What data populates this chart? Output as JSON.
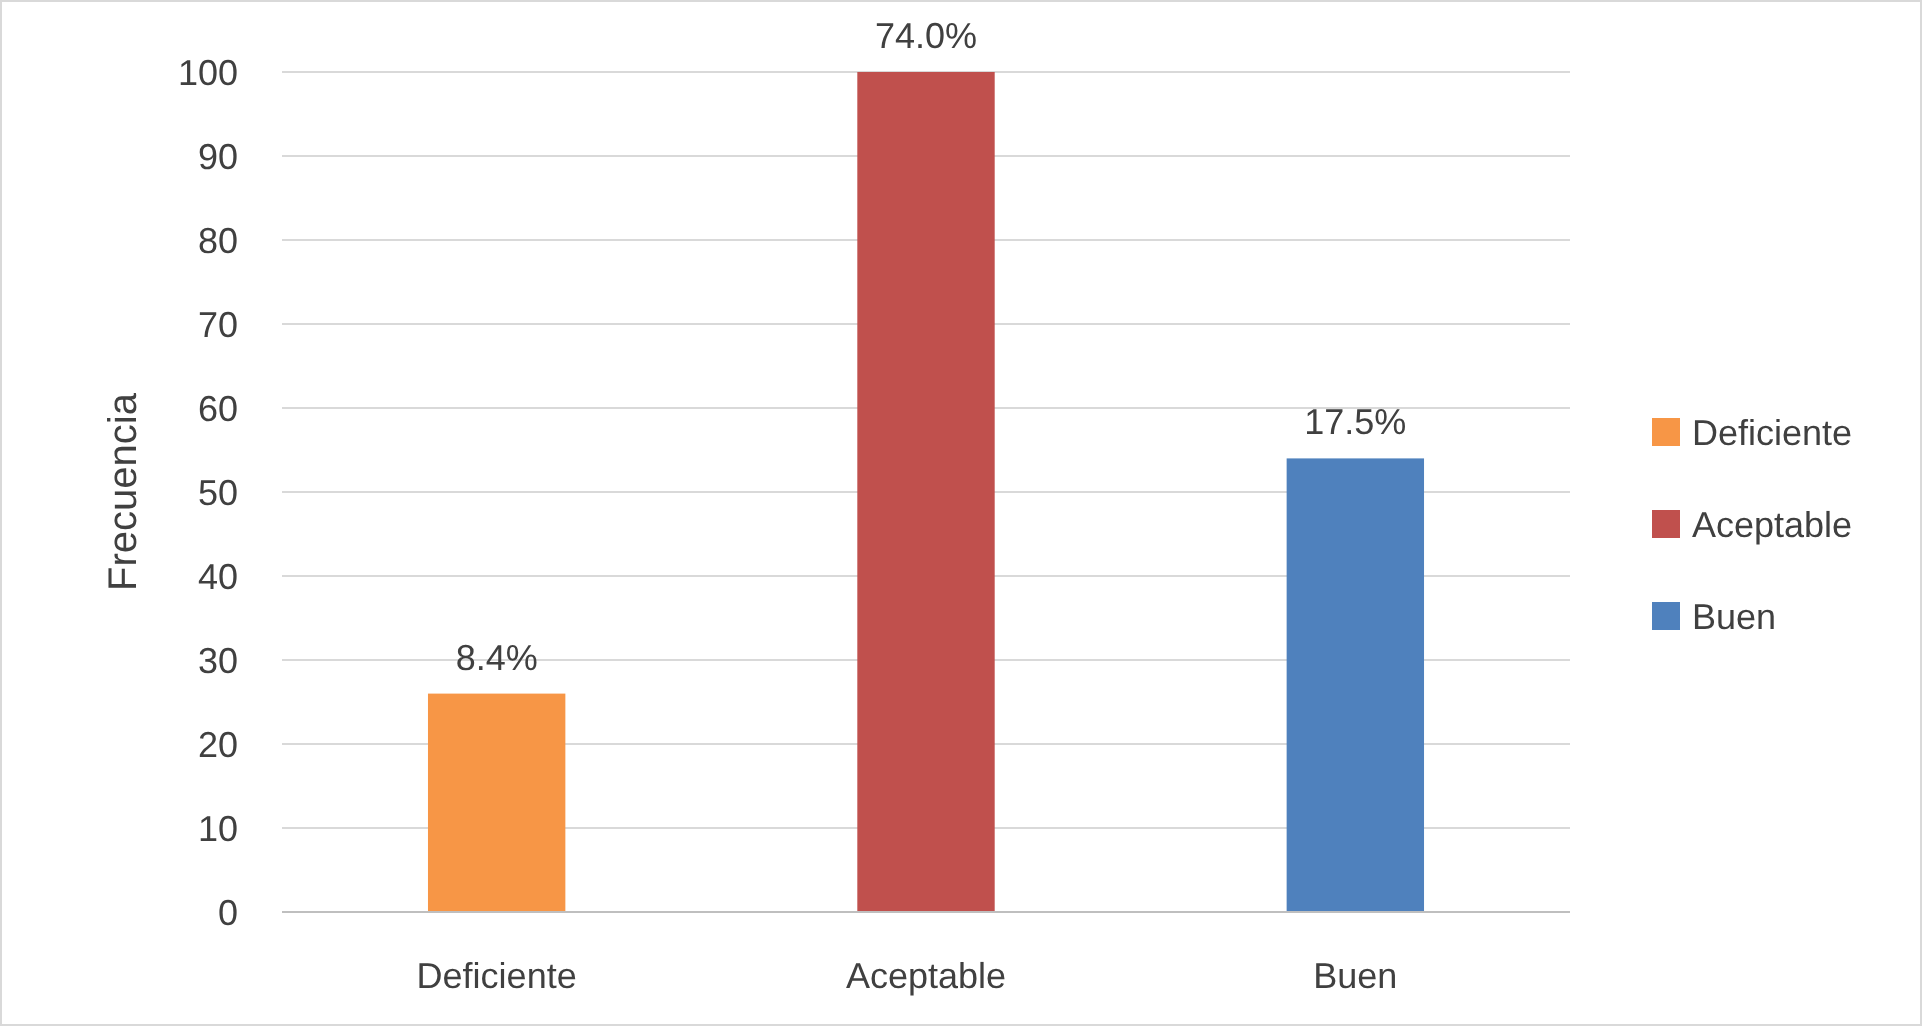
{
  "chart_data": {
    "type": "bar",
    "ylabel": "Frecuencia",
    "categories": [
      "Deficiente",
      "Aceptable",
      "Buen"
    ],
    "series": [
      {
        "name": "Deficiente",
        "color": "#f79646",
        "values": [
          26,
          null,
          null
        ]
      },
      {
        "name": "Aceptable",
        "color": "#c0504d",
        "values": [
          null,
          100,
          null
        ]
      },
      {
        "name": "Buen",
        "color": "#4f81bd",
        "values": [
          null,
          null,
          54
        ]
      }
    ],
    "annotations": [
      {
        "text": "8.4%",
        "x": "Deficiente",
        "y": 26
      },
      {
        "text": "74.0%",
        "x": "Aceptable",
        "y": 100
      },
      {
        "text": "17.5%",
        "x": "Buen",
        "y": 54
      }
    ],
    "ylim": [
      0,
      100
    ],
    "yticks": [
      0,
      10,
      20,
      30,
      40,
      50,
      60,
      70,
      80,
      90,
      100
    ],
    "grid": "y",
    "legend": "right"
  }
}
